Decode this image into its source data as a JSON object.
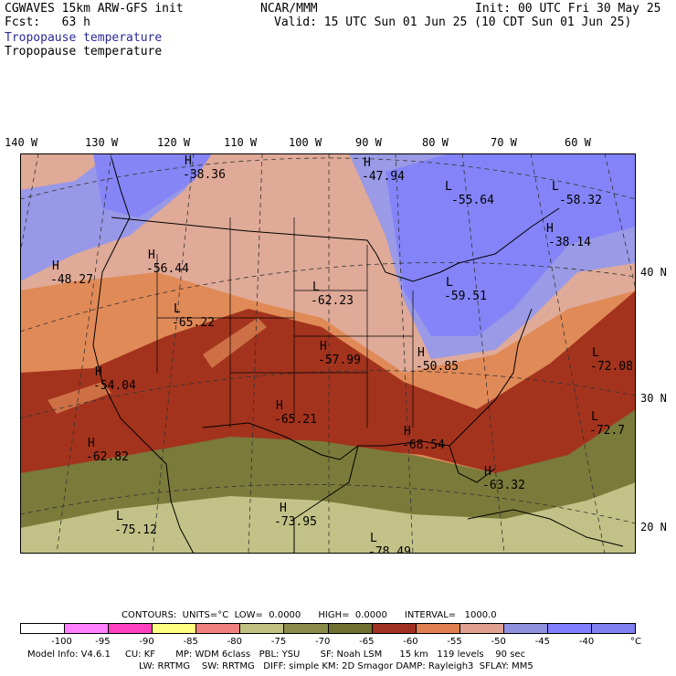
{
  "header": {
    "model": "CGWAVES 15km ARW-GFS init",
    "org": "NCAR/MMM",
    "init": "Init: 00 UTC Fri 30 May 25",
    "fcst": "Fcst:   63 h",
    "valid": "Valid: 15 UTC Sun 01 Jun 25 (10 CDT Sun 01 Jun 25)",
    "field1": "Tropopause temperature",
    "field2": "Tropopause temperature"
  },
  "lon_labels": [
    "140 W",
    "130 W",
    "120 W",
    "110 W",
    "100 W",
    "90 W",
    "80 W",
    "70 W",
    "60 W"
  ],
  "lat_labels": [
    "40 N",
    "30 N",
    "20 N"
  ],
  "extrema": [
    {
      "type": "H",
      "value": "-38.36"
    },
    {
      "type": "H",
      "value": "-47.94"
    },
    {
      "type": "L",
      "value": "-55.64"
    },
    {
      "type": "L",
      "value": "-58.32"
    },
    {
      "type": "H",
      "value": "-38.14"
    },
    {
      "type": "H",
      "value": "-48.27"
    },
    {
      "type": "H",
      "value": "-56.44"
    },
    {
      "type": "L",
      "value": "-62.23"
    },
    {
      "type": "L",
      "value": "-65.22"
    },
    {
      "type": "L",
      "value": "-59.51"
    },
    {
      "type": "H",
      "value": "-57.99"
    },
    {
      "type": "H",
      "value": "-50.85"
    },
    {
      "type": "H",
      "value": "-54.04"
    },
    {
      "type": "L",
      "value": "-72.08"
    },
    {
      "type": "H",
      "value": "-65.21"
    },
    {
      "type": "H",
      "value": "-68.54"
    },
    {
      "type": "L",
      "value": "-72.7"
    },
    {
      "type": "H",
      "value": "-62.82"
    },
    {
      "type": "H",
      "value": "-63.32"
    },
    {
      "type": "L",
      "value": "-75.12"
    },
    {
      "type": "H",
      "value": "-73.95"
    },
    {
      "type": "L",
      "value": "-78.49"
    }
  ],
  "contours": {
    "text": "CONTOURS:  UNITS=°C  LOW=  0.0000      HIGH=  0.0000      INTERVAL=   1000.0"
  },
  "legend": {
    "colors": [
      "#ffffff",
      "#ff80ff",
      "#ff40c0",
      "#ffff80",
      "#f08080",
      "#c0c080",
      "#8a8a4a",
      "#707030",
      "#a03020",
      "#e08050",
      "#e0a090",
      "#9090e0",
      "#8080ff",
      "#8080f0"
    ],
    "ticks": [
      "-100",
      "-95",
      "-90",
      "-85",
      "-80",
      "-75",
      "-70",
      "-65",
      "-60",
      "-55",
      "-50",
      "-45",
      "-40",
      "°C"
    ]
  },
  "footer": {
    "line1": "Model Info: V4.6.1     CU: KF       MP: WDM 6class   PBL: YSU       SF: Noah LSM      15 km   119 levels    90 sec",
    "line2": "LW: RRTMG    SW: RRTMG   DIFF: simple KM: 2D Smagor DAMP: Rayleigh3  SFLAY: MM5"
  }
}
